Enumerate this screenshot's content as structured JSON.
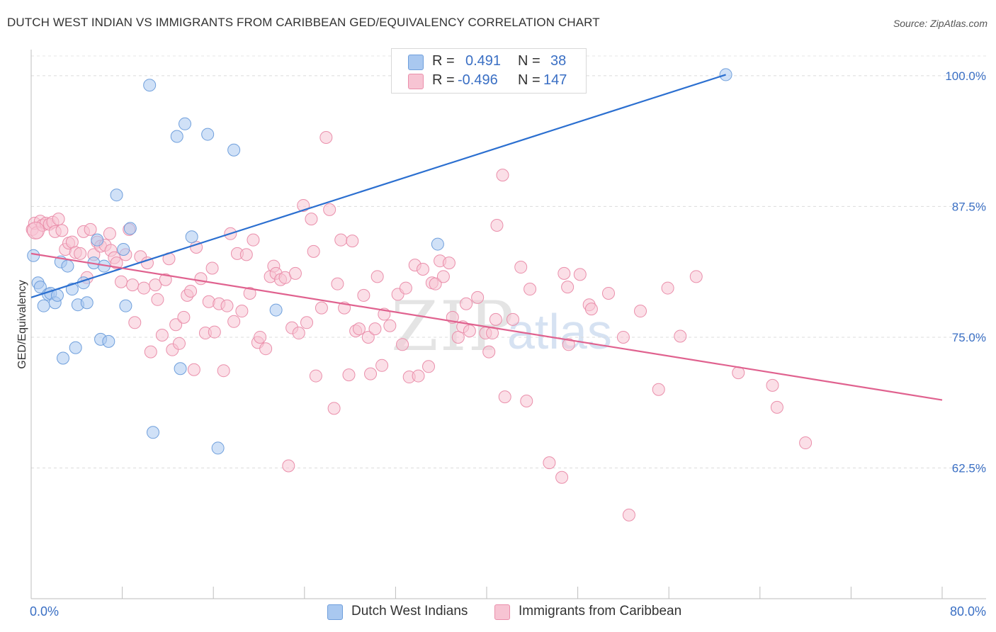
{
  "header": {
    "title": "DUTCH WEST INDIAN VS IMMIGRANTS FROM CARIBBEAN GED/EQUIVALENCY CORRELATION CHART",
    "source": "Source: ZipAtlas.com"
  },
  "watermark": {
    "part1": "ZIP",
    "part2": "atlas"
  },
  "legend_top": {
    "rows": [
      {
        "r_label": "R =",
        "r_value": "0.491",
        "n_label": "N =",
        "n_value": "38",
        "color": "#a9c8f0",
        "border": "#6f9fdc"
      },
      {
        "r_label": "R =",
        "r_value": "-0.496",
        "n_label": "N =",
        "n_value": "147",
        "color": "#f7c4d3",
        "border": "#ea8fab"
      }
    ]
  },
  "chart_data": {
    "type": "scatter",
    "title": "DUTCH WEST INDIAN VS IMMIGRANTS FROM CARIBBEAN GED/EQUIVALENCY CORRELATION CHART",
    "xlabel": "",
    "ylabel": "GED/Equivalency",
    "xlim": [
      0,
      80
    ],
    "ylim": [
      50,
      102.5
    ],
    "x_tick_labels": [
      "0.0%",
      "80.0%"
    ],
    "y_ticks": [
      62.5,
      75.0,
      87.5,
      100.0
    ],
    "y_tick_labels": [
      "62.5%",
      "75.0%",
      "87.5%",
      "100.0%"
    ],
    "grid": true,
    "legend_position": "bottom",
    "series": [
      {
        "name": "Dutch West Indians",
        "color": "#a9c8f0",
        "stroke": "#6f9fdc",
        "line_color": "#2b6fd0",
        "trend": {
          "x": [
            0,
            61
          ],
          "y": [
            78.8,
            100.1
          ]
        },
        "points": [
          [
            0.2,
            82.8
          ],
          [
            0.6,
            80.2
          ],
          [
            0.8,
            79.8
          ],
          [
            1.1,
            78.0
          ],
          [
            1.5,
            79.1
          ],
          [
            1.7,
            79.2
          ],
          [
            2.1,
            78.3
          ],
          [
            2.3,
            79.0
          ],
          [
            2.6,
            82.2
          ],
          [
            2.8,
            73.0
          ],
          [
            3.2,
            81.8
          ],
          [
            3.6,
            79.6
          ],
          [
            3.9,
            74.0
          ],
          [
            4.1,
            78.1
          ],
          [
            4.6,
            80.2
          ],
          [
            4.9,
            78.3
          ],
          [
            5.5,
            82.1
          ],
          [
            5.8,
            84.3
          ],
          [
            6.1,
            74.8
          ],
          [
            6.4,
            81.8
          ],
          [
            6.8,
            74.6
          ],
          [
            7.5,
            88.6
          ],
          [
            8.1,
            83.4
          ],
          [
            8.3,
            78.0
          ],
          [
            8.7,
            85.4
          ],
          [
            10.4,
            99.1
          ],
          [
            10.7,
            65.9
          ],
          [
            12.8,
            94.2
          ],
          [
            13.1,
            72.0
          ],
          [
            13.5,
            95.4
          ],
          [
            14.1,
            84.6
          ],
          [
            15.5,
            94.4
          ],
          [
            16.4,
            64.4
          ],
          [
            17.8,
            92.9
          ],
          [
            21.5,
            77.6
          ],
          [
            35.7,
            83.9
          ],
          [
            34.9,
            100.1
          ],
          [
            61.0,
            100.1
          ]
        ]
      },
      {
        "name": "Immigrants from Caribbean",
        "color": "#f7c4d3",
        "stroke": "#ea8fab",
        "line_color": "#e0628f",
        "trend": {
          "x": [
            0,
            80
          ],
          "y": [
            83.0,
            69.0
          ]
        },
        "points": [
          [
            0.1,
            85.3
          ],
          [
            0.3,
            85.9
          ],
          [
            0.5,
            85.0
          ],
          [
            0.8,
            86.1
          ],
          [
            1.0,
            85.7
          ],
          [
            1.3,
            85.9
          ],
          [
            1.6,
            85.8
          ],
          [
            1.9,
            86.0
          ],
          [
            2.1,
            85.1
          ],
          [
            2.4,
            86.3
          ],
          [
            2.7,
            85.2
          ],
          [
            3.0,
            83.4
          ],
          [
            3.3,
            84.0
          ],
          [
            3.6,
            84.1
          ],
          [
            3.9,
            83.1
          ],
          [
            4.3,
            83.0
          ],
          [
            4.6,
            85.1
          ],
          [
            4.9,
            80.7
          ],
          [
            5.2,
            85.3
          ],
          [
            5.5,
            82.9
          ],
          [
            5.8,
            84.1
          ],
          [
            6.1,
            83.7
          ],
          [
            6.5,
            83.8
          ],
          [
            6.9,
            84.9
          ],
          [
            7.0,
            83.3
          ],
          [
            7.3,
            82.6
          ],
          [
            7.5,
            82.1
          ],
          [
            7.9,
            80.3
          ],
          [
            8.3,
            82.9
          ],
          [
            8.6,
            85.3
          ],
          [
            8.9,
            80.0
          ],
          [
            9.1,
            76.4
          ],
          [
            9.6,
            82.7
          ],
          [
            9.9,
            79.7
          ],
          [
            10.2,
            82.1
          ],
          [
            10.5,
            73.6
          ],
          [
            10.9,
            80.0
          ],
          [
            11.1,
            78.6
          ],
          [
            11.5,
            75.2
          ],
          [
            11.8,
            80.5
          ],
          [
            12.1,
            82.5
          ],
          [
            12.4,
            73.8
          ],
          [
            12.7,
            76.2
          ],
          [
            13.0,
            74.4
          ],
          [
            13.4,
            76.9
          ],
          [
            13.7,
            79.0
          ],
          [
            14.0,
            79.4
          ],
          [
            14.3,
            71.9
          ],
          [
            14.5,
            83.6
          ],
          [
            14.9,
            80.6
          ],
          [
            15.3,
            75.4
          ],
          [
            15.6,
            78.4
          ],
          [
            15.9,
            81.6
          ],
          [
            16.1,
            75.5
          ],
          [
            16.5,
            78.2
          ],
          [
            16.9,
            71.8
          ],
          [
            17.2,
            78.0
          ],
          [
            17.5,
            84.9
          ],
          [
            17.8,
            76.5
          ],
          [
            18.1,
            83.0
          ],
          [
            18.5,
            77.5
          ],
          [
            18.9,
            82.9
          ],
          [
            19.2,
            79.2
          ],
          [
            19.5,
            84.3
          ],
          [
            19.9,
            74.5
          ],
          [
            20.1,
            75.0
          ],
          [
            20.6,
            73.9
          ],
          [
            21.0,
            80.8
          ],
          [
            21.3,
            81.8
          ],
          [
            21.5,
            81.1
          ],
          [
            21.9,
            80.5
          ],
          [
            22.3,
            80.7
          ],
          [
            22.6,
            62.7
          ],
          [
            22.9,
            75.9
          ],
          [
            23.2,
            81.1
          ],
          [
            23.5,
            75.4
          ],
          [
            23.9,
            87.6
          ],
          [
            24.2,
            76.4
          ],
          [
            24.6,
            86.3
          ],
          [
            24.8,
            83.2
          ],
          [
            25.0,
            71.3
          ],
          [
            25.5,
            77.8
          ],
          [
            25.9,
            94.1
          ],
          [
            26.2,
            87.2
          ],
          [
            26.6,
            68.2
          ],
          [
            26.9,
            80.1
          ],
          [
            27.2,
            84.3
          ],
          [
            27.5,
            77.8
          ],
          [
            27.9,
            71.4
          ],
          [
            28.2,
            84.2
          ],
          [
            28.5,
            75.6
          ],
          [
            28.8,
            75.8
          ],
          [
            29.2,
            79.0
          ],
          [
            29.6,
            75.0
          ],
          [
            29.8,
            71.5
          ],
          [
            30.2,
            75.8
          ],
          [
            30.4,
            80.8
          ],
          [
            30.8,
            72.3
          ],
          [
            31.0,
            77.2
          ],
          [
            31.5,
            76.1
          ],
          [
            32.2,
            79.1
          ],
          [
            32.6,
            74.3
          ],
          [
            32.9,
            79.7
          ],
          [
            33.2,
            71.2
          ],
          [
            33.7,
            81.9
          ],
          [
            34.0,
            71.3
          ],
          [
            34.4,
            81.5
          ],
          [
            34.9,
            72.2
          ],
          [
            35.2,
            80.2
          ],
          [
            35.5,
            80.1
          ],
          [
            35.9,
            82.3
          ],
          [
            36.2,
            80.8
          ],
          [
            36.7,
            82.1
          ],
          [
            37.0,
            76.9
          ],
          [
            37.5,
            75.0
          ],
          [
            37.9,
            76.0
          ],
          [
            38.2,
            78.2
          ],
          [
            38.5,
            75.6
          ],
          [
            39.2,
            78.8
          ],
          [
            39.9,
            75.4
          ],
          [
            40.2,
            73.6
          ],
          [
            40.5,
            75.4
          ],
          [
            40.8,
            76.7
          ],
          [
            40.9,
            85.7
          ],
          [
            41.4,
            90.5
          ],
          [
            41.6,
            69.3
          ],
          [
            42.3,
            76.7
          ],
          [
            43.0,
            81.7
          ],
          [
            43.5,
            68.9
          ],
          [
            43.8,
            79.6
          ],
          [
            45.5,
            63.0
          ],
          [
            46.6,
            61.6
          ],
          [
            46.8,
            81.1
          ],
          [
            47.1,
            79.8
          ],
          [
            47.2,
            74.3
          ],
          [
            48.2,
            81.0
          ],
          [
            49.0,
            78.1
          ],
          [
            49.2,
            77.7
          ],
          [
            50.7,
            79.2
          ],
          [
            52.0,
            75.0
          ],
          [
            52.5,
            58.0
          ],
          [
            53.5,
            77.5
          ],
          [
            55.1,
            70.0
          ],
          [
            55.9,
            79.7
          ],
          [
            57.0,
            75.1
          ],
          [
            58.4,
            80.8
          ],
          [
            62.1,
            71.6
          ],
          [
            65.1,
            70.4
          ],
          [
            65.5,
            68.3
          ],
          [
            68.0,
            64.9
          ]
        ]
      }
    ]
  },
  "legend_bottom": {
    "items": [
      {
        "label": "Dutch West Indians",
        "color": "#a9c8f0",
        "border": "#6f9fdc"
      },
      {
        "label": "Immigrants from Caribbean",
        "color": "#f7c4d3",
        "border": "#ea8fab"
      }
    ]
  }
}
